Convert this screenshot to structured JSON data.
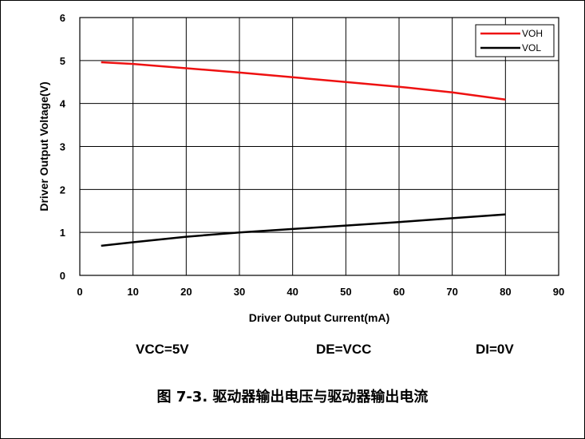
{
  "chart_data": {
    "type": "line",
    "title": "",
    "xlabel": "Driver Output Current(mA)",
    "ylabel": "Driver Output Voltage(V)",
    "xlim": [
      0,
      90
    ],
    "ylim": [
      0,
      6
    ],
    "x_ticks": [
      0,
      10,
      20,
      30,
      40,
      50,
      60,
      70,
      80,
      90
    ],
    "y_ticks": [
      0,
      1,
      2,
      3,
      4,
      5,
      6
    ],
    "grid": true,
    "legend_position": "top-right",
    "series": [
      {
        "name": "VOH",
        "color": "#ee1111",
        "x": [
          4,
          10,
          20,
          30,
          40,
          50,
          60,
          70,
          80
        ],
        "y": [
          4.96,
          4.92,
          4.82,
          4.72,
          4.61,
          4.5,
          4.39,
          4.26,
          4.09
        ]
      },
      {
        "name": "VOL",
        "color": "#000000",
        "x": [
          4,
          10,
          20,
          30,
          40,
          50,
          60,
          70,
          80
        ],
        "y": [
          0.69,
          0.77,
          0.9,
          1.0,
          1.08,
          1.16,
          1.24,
          1.33,
          1.42
        ]
      }
    ]
  },
  "conditions": {
    "vcc": "VCC=5V",
    "de": "DE=VCC",
    "di": "DI=0V"
  },
  "caption": "图 7-3. 驱动器输出电压与驱动器输出电流"
}
